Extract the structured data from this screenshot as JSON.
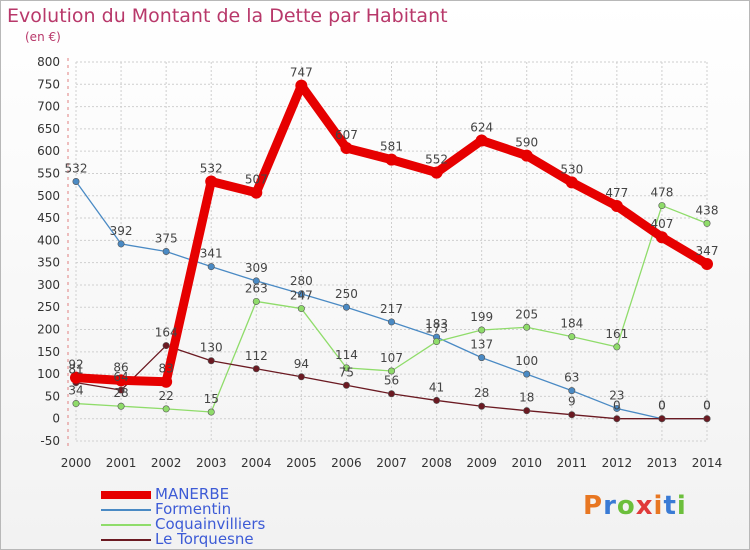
{
  "header": {
    "title": "Evolution du Montant de la Dette par Habitant",
    "subtitle": "(en €)"
  },
  "logo": {
    "text": "Proxiti",
    "colors": [
      "#e87722",
      "#3a7bd5",
      "#6cbf3c",
      "#e03a3a"
    ]
  },
  "chart_data": {
    "type": "line",
    "x": [
      "2000",
      "2001",
      "2002",
      "2003",
      "2004",
      "2005",
      "2006",
      "2007",
      "2008",
      "2009",
      "2010",
      "2011",
      "2012",
      "2013",
      "2014"
    ],
    "ylim": [
      -50,
      800
    ],
    "yticks": [
      -50,
      0,
      50,
      100,
      150,
      200,
      250,
      300,
      350,
      400,
      450,
      500,
      550,
      600,
      650,
      700,
      750,
      800
    ],
    "grid": true,
    "legend_position": "bottom-left",
    "series": [
      {
        "name": "MANERBE",
        "color": "#e60000",
        "values": [
          92,
          86,
          83,
          532,
          507,
          747,
          607,
          581,
          552,
          624,
          590,
          530,
          477,
          407,
          347
        ]
      },
      {
        "name": "Formentin",
        "color": "#4a8ac4",
        "values": [
          532,
          392,
          375,
          341,
          309,
          280,
          250,
          217,
          183,
          137,
          100,
          63,
          23,
          0,
          0
        ]
      },
      {
        "name": "Coquainvilliers",
        "color": "#8fdc6a",
        "values": [
          34,
          28,
          22,
          15,
          263,
          247,
          114,
          107,
          173,
          199,
          205,
          184,
          161,
          478,
          438
        ]
      },
      {
        "name": "Le Torquesne",
        "color": "#6b1a22",
        "values": [
          81,
          64,
          164,
          130,
          112,
          94,
          75,
          56,
          41,
          28,
          18,
          9,
          0,
          0,
          0
        ]
      }
    ]
  }
}
